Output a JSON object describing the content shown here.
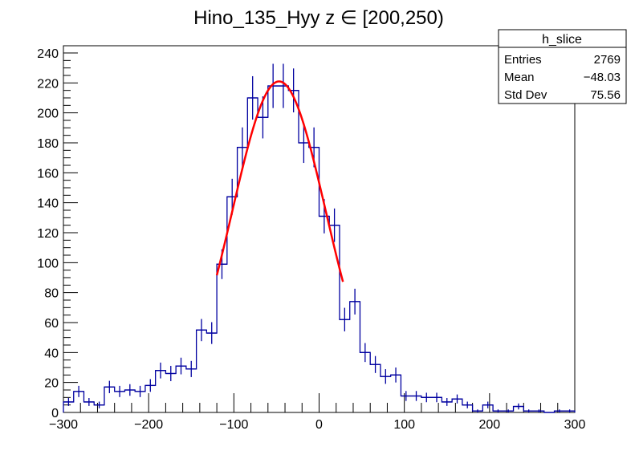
{
  "chart_data": {
    "type": "bar",
    "title": "Hino_135_Hyy z  ∈ [200,250)",
    "xlabel": "",
    "ylabel": "",
    "xlim": [
      -300,
      300
    ],
    "ylim": [
      0,
      240
    ],
    "grid": false,
    "bin_edges_start": -300,
    "bin_width": 12,
    "x_ticks": [
      "−300",
      "−200",
      "−100",
      "0",
      "100",
      "200",
      "300"
    ],
    "x_tick_values": [
      -300,
      -200,
      -100,
      0,
      100,
      200,
      300
    ],
    "y_ticks": [
      "0",
      "20",
      "40",
      "60",
      "80",
      "100",
      "120",
      "140",
      "160",
      "180",
      "200",
      "220",
      "240"
    ],
    "y_tick_values": [
      0,
      20,
      40,
      60,
      80,
      100,
      120,
      140,
      160,
      180,
      200,
      220,
      240
    ],
    "series": [
      {
        "values": [
          7,
          14,
          7,
          5,
          17,
          14,
          15,
          14,
          18,
          28,
          26,
          31,
          29,
          55,
          53,
          99,
          144,
          177,
          210,
          197,
          218,
          218,
          215,
          180,
          177,
          131,
          125,
          62,
          74,
          40,
          32,
          24,
          25,
          11,
          11,
          10,
          10,
          7,
          9,
          5,
          1,
          5,
          1,
          1,
          4,
          1,
          1,
          0,
          1,
          1
        ],
        "error_bars": "sqrt(N)",
        "color": "#0000a0"
      }
    ],
    "fit": {
      "function": "gaussian",
      "amplitude": 221,
      "mean": -47,
      "sigma": 55,
      "range": [
        -120,
        28
      ],
      "color": "#ff0000"
    },
    "legend_placement": "top-right",
    "stats_box": {
      "title": "h_slice",
      "rows": [
        {
          "label": "Entries",
          "value": "2769"
        },
        {
          "label": "Mean",
          "value": "−48.03"
        },
        {
          "label": "Std Dev",
          "value": "75.56"
        }
      ]
    }
  }
}
